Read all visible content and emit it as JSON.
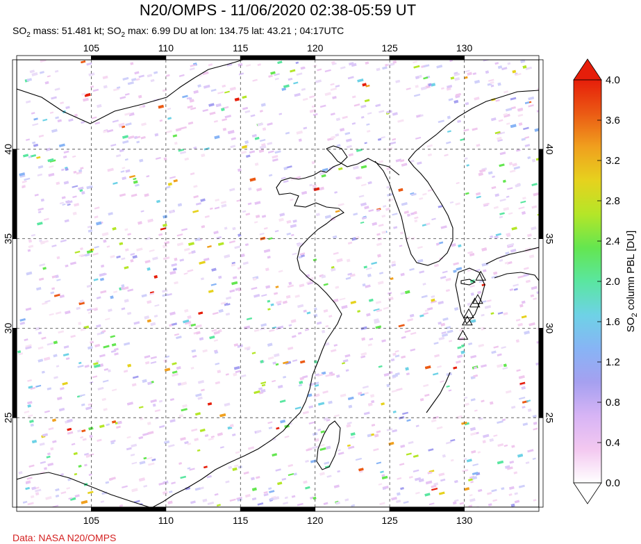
{
  "header": {
    "title": "N20/OMPS - 11/06/2020 02:38-05:59 UT",
    "subtitle_parts": [
      "SO",
      "2",
      " mass: 51.481 kt; SO",
      "2",
      " max: 6.99 DU at lon: 134.75 lat: 43.21 ; 04:17UTC"
    ]
  },
  "credit": "Data: NASA N20/OMPS",
  "colorbar": {
    "label_main": "SO",
    "label_sub": "2",
    "label_rest": " column PBL [DU]",
    "min": 0.0,
    "max": 4.0,
    "tick_labels": [
      "0.0",
      "0.4",
      "0.8",
      "1.2",
      "1.6",
      "2.0",
      "2.4",
      "2.8",
      "3.2",
      "3.6",
      "4.0"
    ],
    "colors": [
      "#ffffff",
      "#f3c8f0",
      "#d7b4f5",
      "#a5a0f0",
      "#87b4f5",
      "#6ed2e6",
      "#5ae6a0",
      "#64e650",
      "#b4e628",
      "#e6d21e",
      "#f0a01e",
      "#eb5a14",
      "#e61e0a"
    ],
    "over_color": "#e61e0a",
    "under_color": "#ffffff"
  },
  "chart_data": {
    "type": "heatmap",
    "title": "N20/OMPS - 11/06/2020 02:38-05:59 UT",
    "xlabel": "",
    "ylabel": "",
    "xlim": [
      100,
      135
    ],
    "ylim": [
      20,
      45
    ],
    "x_ticks": [
      105,
      110,
      115,
      120,
      125,
      130
    ],
    "y_ticks": [
      25,
      30,
      35,
      40
    ],
    "x_tick_labels": [
      "105",
      "110",
      "115",
      "120",
      "125",
      "130"
    ],
    "y_tick_labels": [
      "25",
      "30",
      "35",
      "40"
    ],
    "grid": true,
    "value_unit": "DU",
    "so2_mass_kt": 51.481,
    "so2_max_du": 6.99,
    "max_lon": 134.75,
    "max_lat": 43.21,
    "max_time": "04:17UTC",
    "volcano_markers": [
      {
        "lon": 131.1,
        "lat": 32.9
      },
      {
        "lon": 130.9,
        "lat": 31.6
      },
      {
        "lon": 130.7,
        "lat": 31.4
      },
      {
        "lon": 130.3,
        "lat": 30.8
      },
      {
        "lon": 130.2,
        "lat": 30.4
      },
      {
        "lon": 129.9,
        "lat": 29.6
      }
    ]
  }
}
